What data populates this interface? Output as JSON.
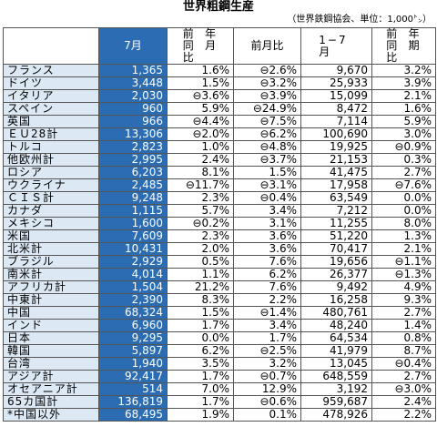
{
  "title": "世界粗鋼生産",
  "subtitle": "（世界鉄鋼協会、単位：1,000㌧）",
  "table": {
    "headers": [
      "7月",
      "前年同月比",
      "前月比",
      "1−7月",
      "前年同期比"
    ],
    "rows": [
      [
        "フランス",
        "1,365",
        "1.6%",
        "⊖2.6%",
        "9,670",
        "3.2%"
      ],
      [
        "ドイツ",
        "3,448",
        "1.5%",
        "⊖3.2%",
        "25,933",
        "3.9%"
      ],
      [
        "イタリア",
        "2,030",
        "⊖3.6%",
        "⊖3.9%",
        "15,099",
        "2.1%"
      ],
      [
        "スペイン",
        "960",
        "5.9%",
        "⊖24.9%",
        "8,472",
        "1.6%"
      ],
      [
        "英国",
        "966",
        "⊖4.4%",
        "⊖7.5%",
        "7,114",
        "5.9%"
      ],
      [
        "ＥＵ28計",
        "13,306",
        "⊖2.0%",
        "⊖6.2%",
        "100,690",
        "3.0%"
      ],
      [
        "トルコ",
        "2,823",
        "1.0%",
        "⊖4.8%",
        "19,925",
        "⊖0.9%"
      ],
      [
        "他欧州計",
        "2,995",
        "2.4%",
        "⊖3.7%",
        "21,153",
        "0.3%"
      ],
      [
        "ロシア",
        "6,203",
        "8.1%",
        "1.5%",
        "41,475",
        "2.7%"
      ],
      [
        "ウクライナ",
        "2,485",
        "⊖11.7%",
        "⊖3.1%",
        "17,958",
        "⊖7.6%"
      ],
      [
        "ＣＩＳ計",
        "9,248",
        "2.3%",
        "⊖0.4%",
        "63,549",
        "0.0%"
      ],
      [
        "カナダ",
        "1,115",
        "5.7%",
        "3.4%",
        "7,212",
        "0.0%"
      ],
      [
        "メキシコ",
        "1,600",
        "⊖0.2%",
        "3.1%",
        "11,255",
        "8.0%"
      ],
      [
        "米国",
        "7,609",
        "2.3%",
        "3.6%",
        "51,220",
        "1.3%"
      ],
      [
        "北米計",
        "10,431",
        "2.0%",
        "3.6%",
        "70,417",
        "2.1%"
      ],
      [
        "ブラジル",
        "2,929",
        "0.5%",
        "7.6%",
        "19,656",
        "⊖1.1%"
      ],
      [
        "南米計",
        "4,014",
        "1.1%",
        "6.2%",
        "26,377",
        "⊖1.3%"
      ],
      [
        "アフリカ計",
        "1,504",
        "21.2%",
        "7.6%",
        "9,492",
        "4.9%"
      ],
      [
        "中東計",
        "2,390",
        "8.3%",
        "2.2%",
        "16,258",
        "9.3%"
      ],
      [
        "中国",
        "68,324",
        "1.5%",
        "⊖1.4%",
        "480,761",
        "2.7%"
      ],
      [
        "インド",
        "6,960",
        "1.7%",
        "3.4%",
        "48,240",
        "1.4%"
      ],
      [
        "日本",
        "9,295",
        "0.0%",
        "1.7%",
        "64,534",
        "0.8%"
      ],
      [
        "韓国",
        "5,897",
        "6.2%",
        "⊖2.5%",
        "41,979",
        "8.7%"
      ],
      [
        "台湾",
        "1,940",
        "3.5%",
        "3.2%",
        "13,045",
        "⊖0.4%"
      ],
      [
        "アジア計",
        "92,417",
        "1.7%",
        "⊖0.7%",
        "648,559",
        "2.7%"
      ],
      [
        "オセアニア計",
        "514",
        "7.0%",
        "12.9%",
        "3,192",
        "⊖3.0%"
      ],
      [
        "65カ国計",
        "136,819",
        "1.7%",
        "⊖0.6%",
        "959,687",
        "2.4%"
      ],
      [
        "*中国以外",
        "68,495",
        "1.9%",
        "0.1%",
        "478,926",
        "2.2%"
      ]
    ]
  }
}
